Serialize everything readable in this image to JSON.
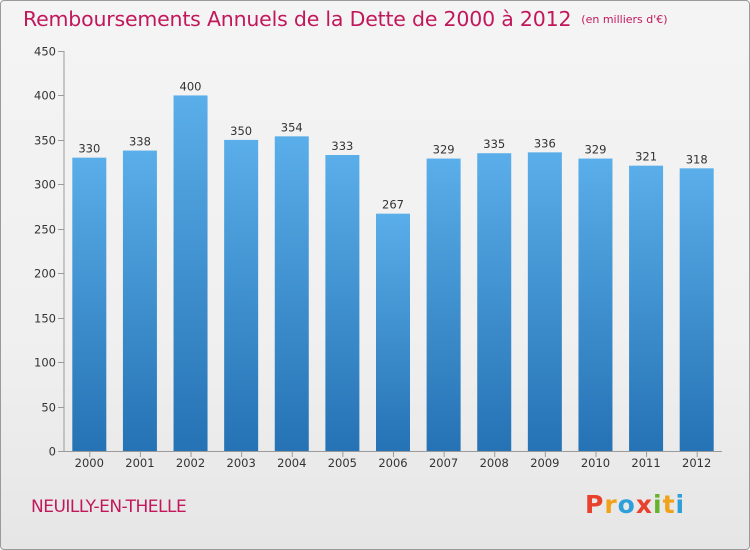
{
  "header": {
    "title": "Remboursements Annuels de la Dette de 2000 à 2012",
    "subtitle": "(en milliers d'€)"
  },
  "footer": {
    "commune": "NEUILLY-EN-THELLE",
    "logo_text": "Proxiti",
    "logo_colors": [
      "#e8412c",
      "#f0a21b",
      "#2e9fd8",
      "#e8412c",
      "#67b32e",
      "#f0a21b",
      "#2e9fd8"
    ]
  },
  "colors": {
    "bar_top": "#5aaee9",
    "bar_bottom": "#2572b4",
    "title": "#c2185b"
  },
  "chart_data": {
    "type": "bar",
    "categories": [
      "2000",
      "2001",
      "2002",
      "2003",
      "2004",
      "2005",
      "2006",
      "2007",
      "2008",
      "2009",
      "2010",
      "2011",
      "2012"
    ],
    "values": [
      330,
      338,
      400,
      350,
      354,
      333,
      267,
      329,
      335,
      336,
      329,
      321,
      318
    ],
    "ylim": [
      0,
      450
    ],
    "yticks": [
      0,
      50,
      100,
      150,
      200,
      250,
      300,
      350,
      400,
      450
    ],
    "title": "Remboursements Annuels de la Dette de 2000 à 2012",
    "subtitle": "(en milliers d'€)",
    "xlabel": "",
    "ylabel": "",
    "grid": false,
    "data_labels": true
  }
}
